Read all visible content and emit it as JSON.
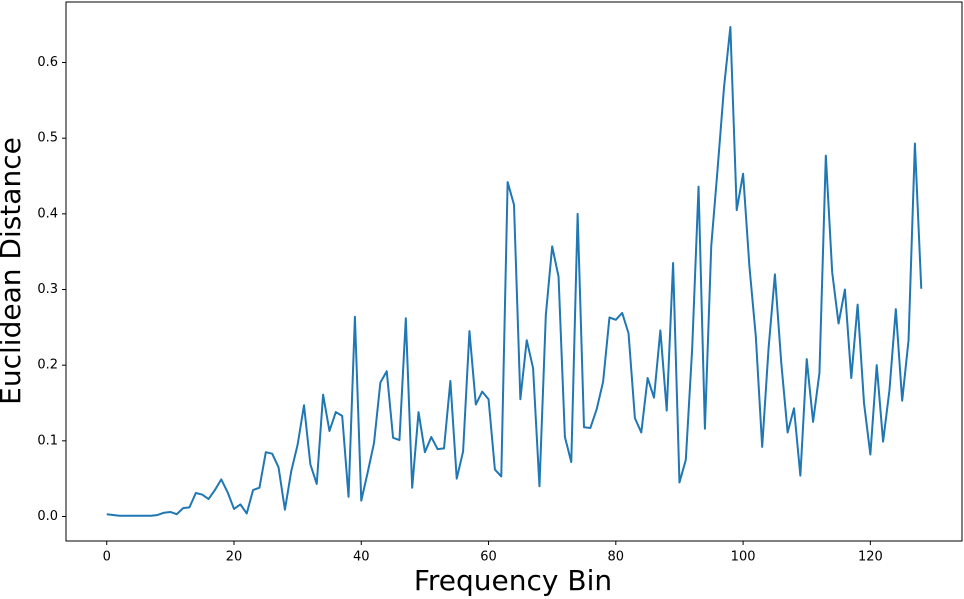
{
  "chart_data": {
    "type": "line",
    "xlabel": "Frequency Bin",
    "ylabel": "Euclidean Distance",
    "x": [
      0,
      1,
      2,
      3,
      4,
      5,
      6,
      7,
      8,
      9,
      10,
      11,
      12,
      13,
      14,
      15,
      16,
      17,
      18,
      19,
      20,
      21,
      22,
      23,
      24,
      25,
      26,
      27,
      28,
      29,
      30,
      31,
      32,
      33,
      34,
      35,
      36,
      37,
      38,
      39,
      40,
      41,
      42,
      43,
      44,
      45,
      46,
      47,
      48,
      49,
      50,
      51,
      52,
      53,
      54,
      55,
      56,
      57,
      58,
      59,
      60,
      61,
      62,
      63,
      64,
      65,
      66,
      67,
      68,
      69,
      70,
      71,
      72,
      73,
      74,
      75,
      76,
      77,
      78,
      79,
      80,
      81,
      82,
      83,
      84,
      85,
      86,
      87,
      88,
      89,
      90,
      91,
      92,
      93,
      94,
      95,
      96,
      97,
      98,
      99,
      100,
      101,
      102,
      103,
      104,
      105,
      106,
      107,
      108,
      109,
      110,
      111,
      112,
      113,
      114,
      115,
      116,
      117,
      118,
      119,
      120,
      121,
      122,
      123,
      124,
      125,
      126,
      127,
      128
    ],
    "series": [
      {
        "color": "#1f77b4",
        "values": [
          0.003,
          0.002,
          0.001,
          0.001,
          0.001,
          0.001,
          0.001,
          0.001,
          0.002,
          0.005,
          0.006,
          0.003,
          0.011,
          0.012,
          0.031,
          0.029,
          0.023,
          0.035,
          0.049,
          0.032,
          0.01,
          0.016,
          0.004,
          0.035,
          0.038,
          0.085,
          0.083,
          0.065,
          0.009,
          0.06,
          0.095,
          0.147,
          0.069,
          0.043,
          0.161,
          0.113,
          0.138,
          0.133,
          0.026,
          0.264,
          0.021,
          0.058,
          0.097,
          0.177,
          0.192,
          0.104,
          0.101,
          0.262,
          0.038,
          0.138,
          0.085,
          0.105,
          0.089,
          0.09,
          0.179,
          0.05,
          0.086,
          0.245,
          0.148,
          0.165,
          0.155,
          0.062,
          0.053,
          0.442,
          0.412,
          0.155,
          0.233,
          0.196,
          0.04,
          0.266,
          0.357,
          0.317,
          0.105,
          0.072,
          0.4,
          0.118,
          0.117,
          0.142,
          0.178,
          0.263,
          0.26,
          0.269,
          0.242,
          0.13,
          0.111,
          0.183,
          0.157,
          0.246,
          0.14,
          0.335,
          0.045,
          0.075,
          0.222,
          0.436,
          0.116,
          0.358,
          0.46,
          0.567,
          0.647,
          0.405,
          0.453,
          0.33,
          0.238,
          0.092,
          0.222,
          0.32,
          0.203,
          0.111,
          0.143,
          0.054,
          0.208,
          0.125,
          0.19,
          0.477,
          0.323,
          0.255,
          0.3,
          0.183,
          0.28,
          0.15,
          0.082,
          0.2,
          0.099,
          0.167,
          0.274,
          0.153,
          0.233,
          0.493,
          0.301
        ]
      }
    ],
    "xlim": [
      -6.4,
      134.4
    ],
    "xticks": [
      0,
      20,
      40,
      60,
      80,
      100,
      120
    ],
    "ylim": [
      -0.0324,
      0.68
    ],
    "yticks": [
      {
        "value": 0,
        "label": "0.0"
      },
      0.1,
      0.2,
      0.3,
      0.4,
      0.5,
      0.6
    ],
    "grid": false
  }
}
